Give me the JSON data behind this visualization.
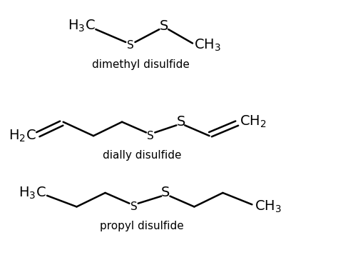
{
  "bg_color": "#ffffff",
  "line_color": "#000000",
  "text_color": "#000000",
  "figsize": [
    4.74,
    3.92
  ],
  "dpi": 100,
  "compounds": [
    {
      "name": "dimethyl disulfide"
    },
    {
      "name": "dially disulfide"
    },
    {
      "name": "propyl disulfide"
    }
  ]
}
